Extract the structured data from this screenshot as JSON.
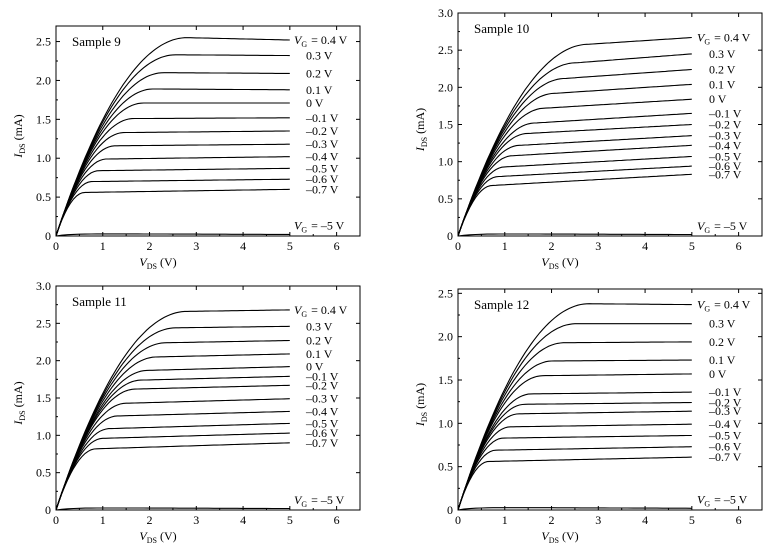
{
  "chart_data": [
    {
      "type": "line",
      "title": "Sample 9",
      "xlabel": {
        "main": "V",
        "sub": "DS",
        "unit": " (V)"
      },
      "ylabel": {
        "main": "I",
        "sub": "DS",
        "unit": " (mA)"
      },
      "xlim": [
        0,
        6.5
      ],
      "ylim": [
        0,
        2.7
      ],
      "xticks": [
        "0",
        "1",
        "2",
        "3",
        "4",
        "5",
        "6"
      ],
      "yticks": [
        "0",
        "0.5",
        "1.0",
        "1.5",
        "2.0",
        "2.5"
      ],
      "ytick_values": [
        0,
        0.5,
        1.0,
        1.5,
        2.0,
        2.5
      ],
      "grid": false,
      "series": [
        {
          "label": "= 0.4 V",
          "sat": 2.55,
          "end": 2.52,
          "curve_type": "peak"
        },
        {
          "label": "0.3 V",
          "sat": 2.33,
          "end": 2.32
        },
        {
          "label": "0.2 V",
          "sat": 2.1,
          "end": 2.09
        },
        {
          "label": "0.1 V",
          "sat": 1.89,
          "end": 1.88
        },
        {
          "label": "0 V",
          "sat": 1.71,
          "end": 1.71
        },
        {
          "label": "–0.1 V",
          "sat": 1.51,
          "end": 1.52
        },
        {
          "label": "–0.2 V",
          "sat": 1.33,
          "end": 1.35
        },
        {
          "label": "–0.3 V",
          "sat": 1.16,
          "end": 1.18
        },
        {
          "label": "–0.4 V",
          "sat": 0.99,
          "end": 1.02
        },
        {
          "label": "–0.5 V",
          "sat": 0.84,
          "end": 0.87
        },
        {
          "label": "–0.6 V",
          "sat": 0.7,
          "end": 0.73
        },
        {
          "label": "–0.7 V",
          "sat": 0.56,
          "end": 0.6
        },
        {
          "label": "= –5 V",
          "sat": 0.03,
          "end": 0.02,
          "curve_type": "off"
        }
      ]
    },
    {
      "type": "line",
      "title": "Sample 10",
      "xlabel": {
        "main": "V",
        "sub": "DS",
        "unit": " (V)"
      },
      "ylabel": {
        "main": "I",
        "sub": "DS",
        "unit": " (mA)"
      },
      "xlim": [
        0,
        6.5
      ],
      "ylim": [
        0,
        3.0
      ],
      "xticks": [
        "0",
        "1",
        "2",
        "3",
        "4",
        "5",
        "6"
      ],
      "yticks": [
        "0",
        "0.5",
        "1.0",
        "1.5",
        "2.0",
        "2.5",
        "3.0"
      ],
      "ytick_values": [
        0,
        0.5,
        1.0,
        1.5,
        2.0,
        2.5,
        3.0
      ],
      "grid": false,
      "series": [
        {
          "label": "= 0.4 V",
          "sat": 2.58,
          "end": 2.67
        },
        {
          "label": "0.3 V",
          "sat": 2.33,
          "end": 2.45
        },
        {
          "label": "0.2 V",
          "sat": 2.12,
          "end": 2.24
        },
        {
          "label": "0.1 V",
          "sat": 1.92,
          "end": 2.04
        },
        {
          "label": "0 V",
          "sat": 1.72,
          "end": 1.84
        },
        {
          "label": "–0.1 V",
          "sat": 1.52,
          "end": 1.65
        },
        {
          "label": "–0.2 V",
          "sat": 1.38,
          "end": 1.5
        },
        {
          "label": "–0.3 V",
          "sat": 1.22,
          "end": 1.35
        },
        {
          "label": "–0.4 V",
          "sat": 1.08,
          "end": 1.22
        },
        {
          "label": "–0.5 V",
          "sat": 0.93,
          "end": 1.07
        },
        {
          "label": "–0.6 V",
          "sat": 0.8,
          "end": 0.94
        },
        {
          "label": "–0.7 V",
          "sat": 0.68,
          "end": 0.83
        },
        {
          "label": "= –5 V",
          "sat": 0.03,
          "end": 0.02,
          "curve_type": "off"
        }
      ]
    },
    {
      "type": "line",
      "title": "Sample 11",
      "xlabel": {
        "main": "V",
        "sub": "DS",
        "unit": " (V)"
      },
      "ylabel": {
        "main": "I",
        "sub": "DS",
        "unit": " (mA)"
      },
      "xlim": [
        0,
        6.5
      ],
      "ylim": [
        0,
        3.0
      ],
      "xticks": [
        "0",
        "1",
        "2",
        "3",
        "4",
        "5",
        "6"
      ],
      "yticks": [
        "0",
        "0.5",
        "1.0",
        "1.5",
        "2.0",
        "2.5",
        "3.0"
      ],
      "ytick_values": [
        0,
        0.5,
        1.0,
        1.5,
        2.0,
        2.5,
        3.0
      ],
      "grid": false,
      "series": [
        {
          "label": "= 0.4 V",
          "sat": 2.66,
          "end": 2.68
        },
        {
          "label": "0.3 V",
          "sat": 2.44,
          "end": 2.46
        },
        {
          "label": "0.2 V",
          "sat": 2.24,
          "end": 2.27
        },
        {
          "label": "0.1 V",
          "sat": 2.05,
          "end": 2.09
        },
        {
          "label": "0 V",
          "sat": 1.87,
          "end": 1.92
        },
        {
          "label": "–0.1 V",
          "sat": 1.74,
          "end": 1.79
        },
        {
          "label": "–0.2 V",
          "sat": 1.62,
          "end": 1.67
        },
        {
          "label": "–0.3 V",
          "sat": 1.43,
          "end": 1.49
        },
        {
          "label": "–0.4 V",
          "sat": 1.26,
          "end": 1.32
        },
        {
          "label": "–0.5 V",
          "sat": 1.09,
          "end": 1.16
        },
        {
          "label": "–0.6 V",
          "sat": 0.96,
          "end": 1.03
        },
        {
          "label": "–0.7 V",
          "sat": 0.82,
          "end": 0.9
        },
        {
          "label": "= –5 V",
          "sat": 0.03,
          "end": 0.02,
          "curve_type": "off"
        }
      ]
    },
    {
      "type": "line",
      "title": "Sample 12",
      "xlabel": {
        "main": "V",
        "sub": "DS",
        "unit": " (V)"
      },
      "ylabel": {
        "main": "I",
        "sub": "DS",
        "unit": " (mA)"
      },
      "xlim": [
        0,
        6.5
      ],
      "ylim": [
        0,
        2.55
      ],
      "xticks": [
        "0",
        "1",
        "2",
        "3",
        "4",
        "5",
        "6"
      ],
      "yticks": [
        "0",
        "0.5",
        "1.0",
        "1.5",
        "2.0",
        "2.5"
      ],
      "ytick_values": [
        0,
        0.5,
        1.0,
        1.5,
        2.0,
        2.5
      ],
      "grid": false,
      "series": [
        {
          "label": "= 0.4 V",
          "sat": 2.38,
          "end": 2.37
        },
        {
          "label": "0.3 V",
          "sat": 2.15,
          "end": 2.15
        },
        {
          "label": "0.2 V",
          "sat": 1.93,
          "end": 1.94
        },
        {
          "label": "0.1 V",
          "sat": 1.72,
          "end": 1.73
        },
        {
          "label": "0 V",
          "sat": 1.55,
          "end": 1.57
        },
        {
          "label": "–0.1 V",
          "sat": 1.34,
          "end": 1.36
        },
        {
          "label": "–0.2 V",
          "sat": 1.22,
          "end": 1.24
        },
        {
          "label": "–0.3 V",
          "sat": 1.11,
          "end": 1.14
        },
        {
          "label": "–0.4 V",
          "sat": 0.96,
          "end": 0.99
        },
        {
          "label": "–0.5 V",
          "sat": 0.83,
          "end": 0.86
        },
        {
          "label": "–0.6 V",
          "sat": 0.69,
          "end": 0.73
        },
        {
          "label": "–0.7 V",
          "sat": 0.56,
          "end": 0.61
        },
        {
          "label": "= –5 V",
          "sat": 0.03,
          "end": 0.02,
          "curve_type": "off"
        }
      ]
    }
  ]
}
